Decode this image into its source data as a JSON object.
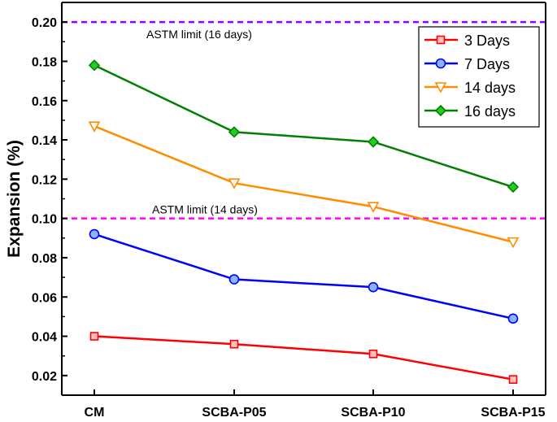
{
  "chart_data": {
    "type": "line",
    "title": "",
    "xlabel": "",
    "ylabel": "Expansion (%)",
    "categories": [
      "CM",
      "SCBA-P05",
      "SCBA-P10",
      "SCBA-P15"
    ],
    "ylim": [
      0.01,
      0.21
    ],
    "yticks": [
      "0.02",
      "0.04",
      "0.06",
      "0.08",
      "0.10",
      "0.12",
      "0.14",
      "0.16",
      "0.18",
      "0.20"
    ],
    "grid": false,
    "legend_position": "top-right",
    "series": [
      {
        "name": "3 Days",
        "values": [
          0.04,
          0.036,
          0.031,
          0.018
        ],
        "color": "#ff0000",
        "marker": "square"
      },
      {
        "name": "7 Days",
        "values": [
          0.092,
          0.069,
          0.065,
          0.049
        ],
        "color": "#0000ff",
        "marker": "circle"
      },
      {
        "name": "14 days",
        "values": [
          0.147,
          0.118,
          0.106,
          0.088
        ],
        "color": "#ff8c00",
        "marker": "triangle-down"
      },
      {
        "name": "16 days",
        "values": [
          0.178,
          0.144,
          0.139,
          0.116
        ],
        "color": "#008000",
        "marker": "diamond"
      }
    ],
    "reference_lines": [
      {
        "y": 0.2,
        "label": "ASTM limit (16 days)",
        "color": "#9400ff"
      },
      {
        "y": 0.1,
        "label": "ASTM limit (14 days)",
        "color": "#ff00ff"
      }
    ]
  }
}
